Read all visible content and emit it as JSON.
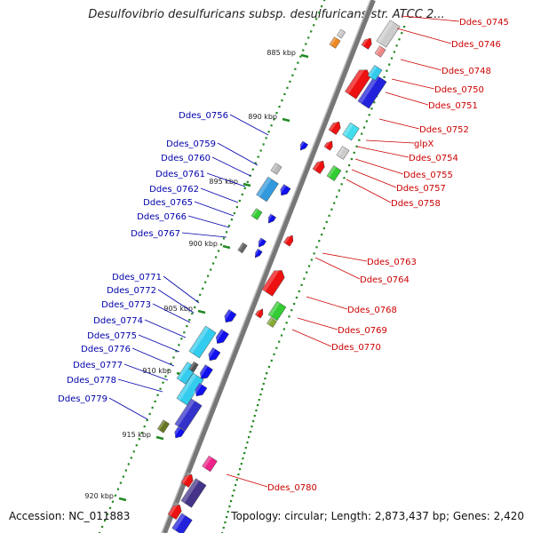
{
  "title": "Desulfovibrio desulfuricans subsp. desulfuricans str. ATCC 2...",
  "footer": {
    "accession_label": "Accession:",
    "accession": "NC_011883",
    "topology_label": "Topology:",
    "topology": "circular",
    "length_label": "Length:",
    "length": "2,873,437 bp",
    "genes_label": "Genes:",
    "genes": "2,420"
  },
  "colors": {
    "forward_label": "#cc0000",
    "reverse_label": "#0000aa",
    "forward_gene": "#ee1111",
    "reverse_gene": "#1111ee",
    "backbone": "#777777",
    "tick": "#228822"
  },
  "kbp_ticks": [
    "885 kbp",
    "890 kbp",
    "895 kbp",
    "900 kbp",
    "905 kbp",
    "910 kbp",
    "915 kbp",
    "920 kbp"
  ],
  "forward_genes": [
    "Ddes_0745",
    "Ddes_0746",
    "Ddes_0748",
    "Ddes_0750",
    "Ddes_0751",
    "Ddes_0752",
    "glpX",
    "Ddes_0754",
    "Ddes_0755",
    "Ddes_0757",
    "Ddes_0758",
    "Ddes_0763",
    "Ddes_0764",
    "Ddes_0768",
    "Ddes_0769",
    "Ddes_0770",
    "Ddes_0780"
  ],
  "reverse_genes": [
    "Ddes_0756",
    "Ddes_0759",
    "Ddes_0760",
    "Ddes_0761",
    "Ddes_0762",
    "Ddes_0765",
    "Ddes_0766",
    "Ddes_0767",
    "Ddes_0771",
    "Ddes_0772",
    "Ddes_0773",
    "Ddes_0774",
    "Ddes_0775",
    "Ddes_0776",
    "Ddes_0777",
    "Ddes_0778",
    "Ddes_0779"
  ]
}
